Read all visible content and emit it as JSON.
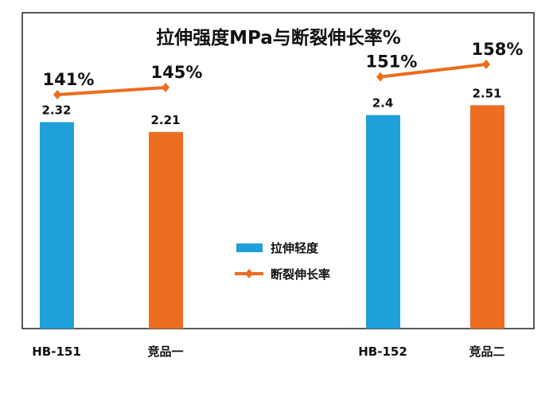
{
  "chart_data": {
    "type": "bar",
    "title": "拉伸强度MPa与断裂伸长率%",
    "categories": [
      "HB-151",
      "竞品一",
      "HB-152",
      "竞品二"
    ],
    "series": [
      {
        "name": "拉伸轻度",
        "type": "bar",
        "values": [
          2.32,
          2.21,
          2.4,
          2.51
        ],
        "value_labels": [
          "2.32",
          "2.21",
          "2.4",
          "2.51"
        ],
        "colors": [
          "#1FA0DB",
          "#EC6D1F",
          "#1FA0DB",
          "#EC6D1F"
        ]
      },
      {
        "name": "断裂伸长率",
        "type": "line",
        "values": [
          141,
          145,
          151,
          158
        ],
        "value_labels": [
          "141%",
          "145%",
          "151%",
          "158%"
        ],
        "color": "#EC6D1F",
        "segments": [
          [
            0,
            1
          ],
          [
            2,
            3
          ]
        ]
      }
    ],
    "legend": [
      "拉伸轻度",
      "断裂伸长率"
    ],
    "legend_placement": "center",
    "xlabel": "",
    "ylabel": "",
    "ylim": [
      0,
      3.55
    ],
    "grid": false
  }
}
